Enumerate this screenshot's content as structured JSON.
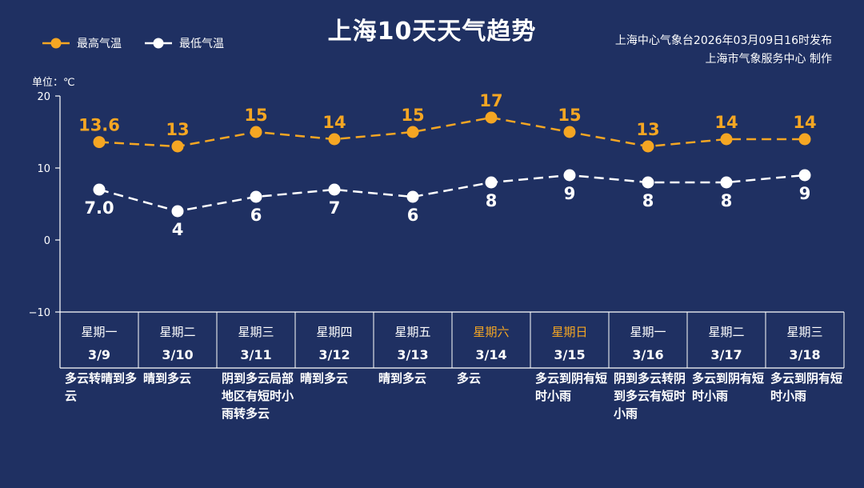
{
  "header": {
    "title": "上海10天天气趋势",
    "source_line1": "上海中心气象台2026年03月09日16时发布",
    "source_line2": "上海市气象服务中心  制作",
    "unit_label": "单位：℃"
  },
  "legend": {
    "high_label": "最高气温",
    "low_label": "最低气温"
  },
  "colors": {
    "background": "#1f3062",
    "high": "#f5a623",
    "low": "#ffffff",
    "weekend": "#f5a623"
  },
  "chart_data": {
    "type": "line",
    "ylabel": "单位：℃",
    "ylim": [
      -10,
      20
    ],
    "yticks": [
      -10,
      0,
      10,
      20
    ],
    "legend_position": "top-left",
    "grid": false,
    "categories": [
      "3/9",
      "3/10",
      "3/11",
      "3/12",
      "3/13",
      "3/14",
      "3/15",
      "3/16",
      "3/17",
      "3/18"
    ],
    "weekdays": [
      "星期一",
      "星期二",
      "星期三",
      "星期四",
      "星期五",
      "星期六",
      "星期日",
      "星期一",
      "星期二",
      "星期三"
    ],
    "weekend_flags": [
      false,
      false,
      false,
      false,
      false,
      true,
      true,
      false,
      false,
      false
    ],
    "series": [
      {
        "name": "最高气温",
        "values": [
          13.6,
          13,
          15,
          14,
          15,
          17,
          15,
          13,
          14,
          14
        ],
        "labels": [
          "13.6",
          "13",
          "15",
          "14",
          "15",
          "17",
          "15",
          "13",
          "14",
          "14"
        ]
      },
      {
        "name": "最低气温",
        "values": [
          7.0,
          4,
          6,
          7,
          6,
          8,
          9,
          8,
          8,
          9
        ],
        "labels": [
          "7.0",
          "4",
          "6",
          "7",
          "6",
          "8",
          "9",
          "8",
          "8",
          "9"
        ]
      }
    ],
    "descriptions": [
      "多云转晴到多云",
      "晴到多云",
      "阴到多云局部地区有短时小雨转多云",
      "晴到多云",
      "晴到多云",
      "多云",
      "多云到阴有短时小雨",
      "阴到多云转阴到多云有短时小雨",
      "多云到阴有短时小雨",
      "多云到阴有短时小雨"
    ]
  }
}
